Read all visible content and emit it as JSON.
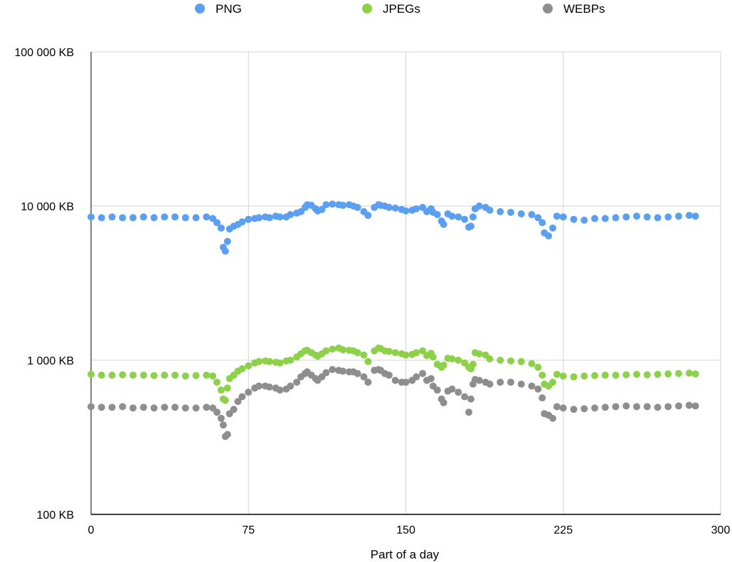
{
  "chart_data": {
    "type": "scatter",
    "title": "",
    "xlabel": "Part of a day",
    "ylabel": "",
    "xlim": [
      0,
      300
    ],
    "ylim": [
      100,
      100000
    ],
    "y_scale": "log",
    "x_ticks": [
      "0",
      "75",
      "150",
      "225",
      "300"
    ],
    "y_ticks": [
      "100 KB",
      "1 000 KB",
      "10 000 KB",
      "100 000 KB"
    ],
    "grid": true,
    "legend_position": "top",
    "series": [
      {
        "name": "PNG",
        "color": "#5b9ff0",
        "x": [
          0,
          5,
          10,
          15,
          20,
          25,
          30,
          35,
          40,
          45,
          50,
          55,
          58,
          60,
          62,
          63,
          64,
          65,
          66,
          68,
          70,
          72,
          75,
          78,
          80,
          83,
          85,
          88,
          90,
          93,
          95,
          98,
          100,
          102,
          103,
          105,
          107,
          108,
          110,
          112,
          115,
          118,
          120,
          123,
          125,
          127,
          130,
          132,
          135,
          137,
          138,
          140,
          142,
          145,
          148,
          150,
          153,
          155,
          158,
          160,
          162,
          163,
          165,
          167,
          168,
          170,
          172,
          175,
          178,
          180,
          181,
          182,
          183,
          185,
          188,
          190,
          195,
          200,
          205,
          210,
          213,
          215,
          216,
          218,
          220,
          222,
          225,
          230,
          235,
          240,
          245,
          250,
          255,
          260,
          265,
          270,
          275,
          280,
          285,
          288
        ],
        "y": [
          8500,
          8400,
          8500,
          8400,
          8400,
          8500,
          8400,
          8500,
          8500,
          8400,
          8400,
          8500,
          8300,
          7800,
          7200,
          5400,
          5100,
          5900,
          7100,
          7400,
          7600,
          7900,
          8200,
          8300,
          8400,
          8500,
          8400,
          8600,
          8500,
          8500,
          8800,
          9000,
          9200,
          9800,
          10200,
          10100,
          9600,
          9300,
          9500,
          10200,
          10300,
          10200,
          10100,
          10200,
          10000,
          9800,
          9200,
          8700,
          9800,
          10200,
          10100,
          10000,
          9800,
          9700,
          9500,
          9300,
          9400,
          9600,
          9800,
          9200,
          9600,
          9100,
          8800,
          8000,
          7600,
          8900,
          8600,
          8500,
          8200,
          7300,
          7400,
          8500,
          9600,
          10000,
          9800,
          9400,
          9200,
          9100,
          8900,
          8800,
          8400,
          7800,
          6700,
          6400,
          7200,
          8600,
          8500,
          8200,
          8100,
          8300,
          8300,
          8400,
          8500,
          8600,
          8500,
          8400,
          8500,
          8600,
          8700,
          8600
        ]
      },
      {
        "name": "JPEGs",
        "color": "#8dd14a",
        "x": [
          0,
          5,
          10,
          15,
          20,
          25,
          30,
          35,
          40,
          45,
          50,
          55,
          58,
          60,
          62,
          63,
          64,
          65,
          66,
          68,
          70,
          72,
          75,
          78,
          80,
          83,
          85,
          88,
          90,
          93,
          95,
          98,
          100,
          102,
          103,
          105,
          107,
          108,
          110,
          112,
          115,
          118,
          120,
          123,
          125,
          127,
          130,
          132,
          135,
          137,
          138,
          140,
          142,
          145,
          148,
          150,
          153,
          155,
          158,
          160,
          162,
          163,
          165,
          167,
          168,
          170,
          172,
          175,
          178,
          180,
          181,
          182,
          183,
          185,
          188,
          190,
          195,
          200,
          205,
          210,
          213,
          215,
          216,
          218,
          220,
          222,
          225,
          230,
          235,
          240,
          245,
          250,
          255,
          260,
          265,
          270,
          275,
          280,
          285,
          288
        ],
        "y": [
          810,
          800,
          800,
          805,
          800,
          800,
          795,
          800,
          800,
          790,
          795,
          800,
          790,
          720,
          640,
          560,
          550,
          660,
          760,
          800,
          850,
          880,
          920,
          960,
          980,
          990,
          980,
          970,
          960,
          990,
          1000,
          1050,
          1100,
          1150,
          1160,
          1120,
          1080,
          1060,
          1100,
          1150,
          1180,
          1200,
          1170,
          1160,
          1150,
          1120,
          1080,
          980,
          1150,
          1200,
          1190,
          1150,
          1140,
          1120,
          1100,
          1080,
          1090,
          1120,
          1150,
          1070,
          1110,
          1050,
          940,
          900,
          930,
          1030,
          1020,
          1000,
          960,
          900,
          880,
          940,
          1120,
          1100,
          1080,
          1020,
          1000,
          990,
          980,
          950,
          900,
          800,
          700,
          680,
          720,
          810,
          790,
          780,
          790,
          795,
          800,
          800,
          805,
          810,
          805,
          810,
          815,
          820,
          825,
          815
        ]
      },
      {
        "name": "WEBPs",
        "color": "#8e8e8e",
        "x": [
          0,
          5,
          10,
          15,
          20,
          25,
          30,
          35,
          40,
          45,
          50,
          55,
          58,
          60,
          62,
          63,
          64,
          65,
          66,
          68,
          70,
          72,
          75,
          78,
          80,
          83,
          85,
          88,
          90,
          93,
          95,
          98,
          100,
          102,
          103,
          105,
          107,
          108,
          110,
          112,
          115,
          118,
          120,
          123,
          125,
          127,
          130,
          132,
          135,
          137,
          138,
          140,
          142,
          145,
          148,
          150,
          153,
          155,
          158,
          160,
          162,
          163,
          165,
          167,
          168,
          170,
          172,
          175,
          178,
          180,
          181,
          182,
          183,
          185,
          188,
          190,
          195,
          200,
          205,
          210,
          213,
          215,
          216,
          218,
          220,
          222,
          225,
          230,
          235,
          240,
          245,
          250,
          255,
          260,
          265,
          270,
          275,
          280,
          285,
          288
        ],
        "y": [
          500,
          495,
          495,
          500,
          490,
          495,
          490,
          495,
          495,
          490,
          490,
          495,
          490,
          460,
          420,
          380,
          320,
          330,
          450,
          480,
          540,
          580,
          620,
          660,
          680,
          680,
          670,
          660,
          640,
          650,
          680,
          720,
          780,
          820,
          840,
          800,
          760,
          740,
          780,
          830,
          870,
          860,
          850,
          840,
          840,
          820,
          780,
          720,
          860,
          870,
          860,
          820,
          800,
          740,
          720,
          720,
          740,
          780,
          820,
          740,
          760,
          680,
          640,
          560,
          530,
          630,
          650,
          620,
          580,
          460,
          560,
          700,
          750,
          740,
          720,
          700,
          720,
          720,
          700,
          680,
          650,
          570,
          450,
          440,
          420,
          500,
          490,
          480,
          485,
          490,
          495,
          500,
          505,
          500,
          500,
          495,
          500,
          505,
          510,
          505
        ]
      }
    ]
  }
}
